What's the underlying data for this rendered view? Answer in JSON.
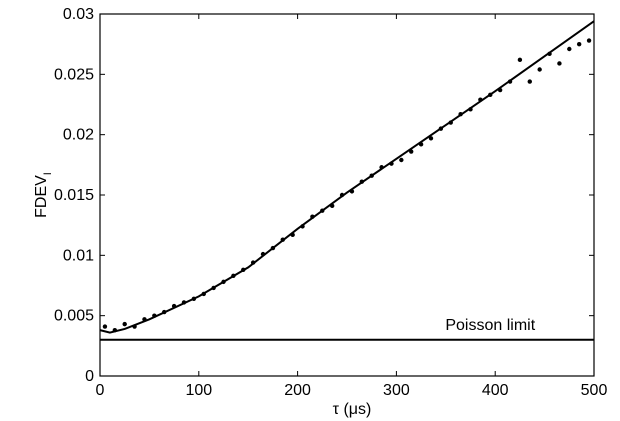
{
  "chart_data": {
    "type": "scatter",
    "color": "#000000",
    "xlabel": "τ (μs)",
    "ylabel": "FDEV",
    "ylabel_subscript": "I",
    "xlim": [
      0,
      500
    ],
    "xticks": [
      0,
      100,
      200,
      300,
      400,
      500
    ],
    "ylim": [
      0,
      0.03
    ],
    "yticks": [
      0,
      0.005,
      0.01,
      0.015,
      0.02,
      0.025,
      0.03
    ],
    "scatter": {
      "x": [
        5,
        15,
        25,
        35,
        45,
        55,
        65,
        75,
        85,
        95,
        105,
        115,
        125,
        135,
        145,
        155,
        165,
        175,
        185,
        195,
        205,
        215,
        225,
        235,
        245,
        255,
        265,
        275,
        285,
        295,
        305,
        315,
        325,
        335,
        345,
        355,
        365,
        375,
        385,
        395,
        405,
        415,
        425,
        435,
        445,
        455,
        465,
        475,
        485,
        495
      ],
      "y": [
        0.0041,
        0.0038,
        0.0043,
        0.0041,
        0.0047,
        0.005,
        0.0053,
        0.0058,
        0.0061,
        0.0064,
        0.0068,
        0.0073,
        0.0078,
        0.0083,
        0.0088,
        0.0094,
        0.0101,
        0.0106,
        0.0113,
        0.0117,
        0.0124,
        0.0132,
        0.0137,
        0.0141,
        0.015,
        0.0153,
        0.0161,
        0.0166,
        0.0173,
        0.0176,
        0.0179,
        0.0186,
        0.0192,
        0.0197,
        0.0205,
        0.021,
        0.0217,
        0.0221,
        0.0229,
        0.0233,
        0.0237,
        0.0244,
        0.0262,
        0.0244,
        0.0254,
        0.0267,
        0.0259,
        0.0271,
        0.0275,
        0.0278
      ]
    },
    "fit": {
      "x": [
        0,
        10,
        25,
        50,
        100,
        150,
        200,
        250,
        300,
        350,
        400,
        450,
        500
      ],
      "y": [
        0.0038,
        0.0036,
        0.0039,
        0.0047,
        0.0066,
        0.009,
        0.0122,
        0.0152,
        0.018,
        0.0208,
        0.0236,
        0.0265,
        0.0294
      ]
    },
    "poisson_limit": {
      "value": 0.003,
      "label": "Poisson limit"
    }
  }
}
